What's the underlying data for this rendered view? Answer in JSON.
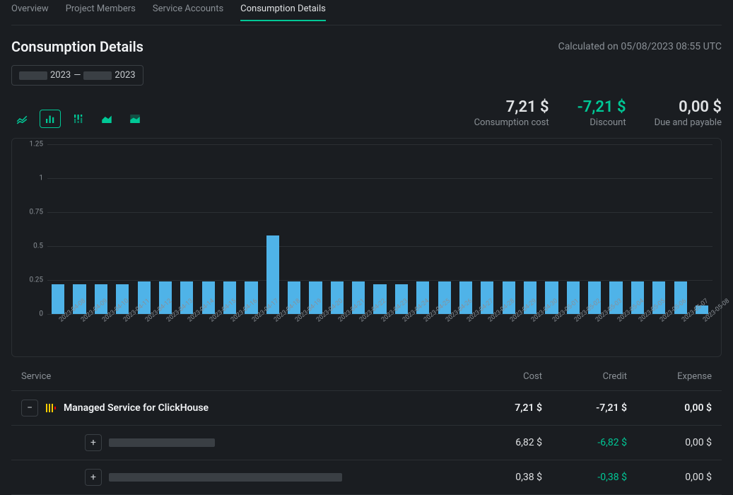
{
  "tabs": [
    {
      "label": "Overview",
      "active": false
    },
    {
      "label": "Project Members",
      "active": false
    },
    {
      "label": "Service Accounts",
      "active": false
    },
    {
      "label": "Consumption Details",
      "active": true
    }
  ],
  "page_title": "Consumption Details",
  "calculated_on": "Calculated on 05/08/2023 08:55 UTC",
  "date_range": {
    "start_year": "2023",
    "separator": "—",
    "end_year": "2023"
  },
  "summary": {
    "consumption": {
      "value": "7,21 $",
      "label": "Consumption cost"
    },
    "discount": {
      "value": "-7,21 $",
      "label": "Discount"
    },
    "due": {
      "value": "0,00 $",
      "label": "Due and payable"
    }
  },
  "chart": {
    "type": "bar",
    "ylim": [
      0,
      1.25
    ],
    "yticks": [
      0,
      0.25,
      0.5,
      0.75,
      1,
      1.25
    ],
    "ytick_labels": [
      "0",
      "0.25",
      "0.5",
      "0.75",
      "1",
      "1.25"
    ],
    "bar_color": "#4fb3e8",
    "grid_color": "#2b2f33",
    "background_color": "#1a1d21",
    "label_color": "#8a9096",
    "label_fontsize": 10,
    "dates": [
      "2023-04-08",
      "2023-04-09",
      "2023-04-10",
      "2023-04-11",
      "2023-04-12",
      "2023-04-13",
      "2023-04-14",
      "2023-04-15",
      "2023-04-16",
      "2023-04-17",
      "2023-04-18",
      "2023-04-19",
      "2023-04-20",
      "2023-04-21",
      "2023-04-22",
      "2023-04-23",
      "2023-04-24",
      "2023-04-25",
      "2023-04-26",
      "2023-04-27",
      "2023-04-28",
      "2023-04-29",
      "2023-04-30",
      "2023-05-01",
      "2023-05-02",
      "2023-05-03",
      "2023-05-04",
      "2023-05-05",
      "2023-05-06",
      "2023-05-07",
      "2023-05-08"
    ],
    "values": [
      0.22,
      0.22,
      0.22,
      0.22,
      0.24,
      0.24,
      0.24,
      0.24,
      0.24,
      0.24,
      0.58,
      0.24,
      0.24,
      0.24,
      0.24,
      0.22,
      0.22,
      0.24,
      0.24,
      0.24,
      0.24,
      0.24,
      0.24,
      0.24,
      0.24,
      0.24,
      0.24,
      0.24,
      0.24,
      0.24,
      0.06
    ]
  },
  "table": {
    "columns": {
      "service": "Service",
      "cost": "Cost",
      "credit": "Credit",
      "expense": "Expense"
    },
    "rows": [
      {
        "type": "parent",
        "expanded": true,
        "icon": "clickhouse",
        "service": "Managed Service for ClickHouse",
        "cost": "7,21 $",
        "credit": "-7,21 $",
        "expense": "0,00 $"
      },
      {
        "type": "child",
        "expanded": false,
        "service_redacted_width": 150,
        "cost": "6,82 $",
        "credit": "-6,82 $",
        "expense": "0,00 $"
      },
      {
        "type": "child",
        "expanded": false,
        "service_redacted_width": 330,
        "cost": "0,38 $",
        "credit": "-0,38 $",
        "expense": "0,00 $"
      }
    ]
  },
  "colors": {
    "accent": "#00c896",
    "bar": "#4fb3e8",
    "text_muted": "#8a9096",
    "border": "#2b2f33"
  }
}
